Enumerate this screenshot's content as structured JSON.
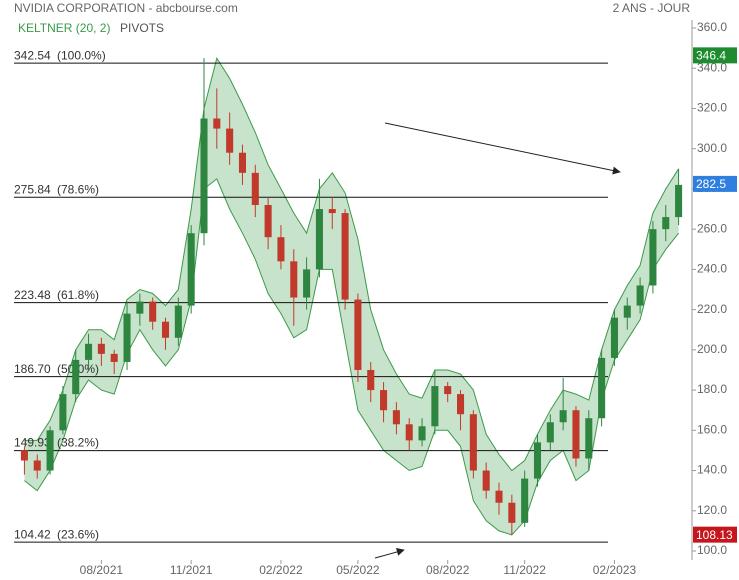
{
  "chart_data": {
    "type": "candlestick",
    "title": "NVIDIA CORPORATION - abcbourse.com",
    "subtitle": "2 ANS - JOUR",
    "legend": [
      "KELTNER (20, 2)",
      "PIVOTS"
    ],
    "categories": [
      null,
      null,
      null,
      null,
      null,
      null,
      "08/2021",
      null,
      null,
      null,
      null,
      null,
      null,
      "11/2021",
      null,
      null,
      null,
      null,
      null,
      null,
      "02/2022",
      null,
      null,
      null,
      null,
      null,
      "05/2022",
      null,
      null,
      null,
      null,
      null,
      null,
      "08/2022",
      null,
      null,
      null,
      null,
      null,
      "11/2022",
      null,
      null,
      null,
      null,
      null,
      null,
      "02/2023",
      null,
      null,
      null,
      null,
      null
    ],
    "candles": {
      "open": [
        150,
        145,
        140,
        160,
        178,
        195,
        203,
        198,
        194,
        218,
        224,
        214,
        206,
        222,
        258,
        315,
        310,
        298,
        288,
        272,
        256,
        244,
        226,
        240,
        270,
        268,
        225,
        190,
        180,
        170,
        163,
        155,
        162,
        182,
        178,
        168,
        140,
        130,
        124,
        114,
        136,
        154,
        164,
        170,
        146,
        166,
        196,
        216,
        222,
        232,
        260,
        266
      ],
      "high": [
        152,
        148,
        162,
        182,
        200,
        208,
        206,
        200,
        224,
        228,
        226,
        216,
        226,
        262,
        345,
        330,
        318,
        302,
        292,
        276,
        262,
        250,
        246,
        285,
        276,
        270,
        228,
        194,
        184,
        174,
        166,
        166,
        190,
        184,
        180,
        170,
        144,
        134,
        128,
        140,
        158,
        168,
        186,
        172,
        170,
        200,
        220,
        226,
        236,
        264,
        272,
        290
      ],
      "low": [
        138,
        136,
        138,
        158,
        174,
        190,
        192,
        188,
        190,
        212,
        210,
        200,
        202,
        218,
        252,
        300,
        292,
        282,
        266,
        250,
        240,
        212,
        220,
        236,
        260,
        220,
        184,
        174,
        164,
        158,
        150,
        152,
        158,
        174,
        160,
        136,
        126,
        118,
        108,
        112,
        132,
        150,
        160,
        142,
        140,
        162,
        192,
        210,
        218,
        228,
        254,
        262
      ],
      "close": [
        145,
        140,
        160,
        178,
        195,
        203,
        198,
        194,
        218,
        224,
        214,
        206,
        222,
        258,
        315,
        310,
        298,
        288,
        272,
        256,
        244,
        226,
        240,
        270,
        268,
        225,
        190,
        180,
        170,
        163,
        155,
        162,
        182,
        178,
        168,
        140,
        130,
        124,
        114,
        136,
        154,
        164,
        170,
        146,
        166,
        196,
        216,
        222,
        232,
        260,
        266,
        282
      ],
      "up_color": "#2e8540",
      "down_color": "#c0392b"
    },
    "keltner": {
      "color": "#3a9a48",
      "upper": [
        155,
        155,
        165,
        180,
        200,
        210,
        210,
        205,
        225,
        230,
        228,
        222,
        230,
        270,
        320,
        345,
        335,
        322,
        308,
        292,
        280,
        268,
        258,
        280,
        288,
        278,
        255,
        220,
        200,
        188,
        178,
        176,
        190,
        190,
        188,
        180,
        158,
        148,
        140,
        145,
        158,
        170,
        180,
        178,
        175,
        200,
        220,
        232,
        242,
        268,
        280,
        290
      ],
      "lower": [
        135,
        130,
        140,
        155,
        175,
        185,
        180,
        178,
        198,
        210,
        200,
        192,
        200,
        225,
        280,
        285,
        270,
        258,
        245,
        228,
        218,
        206,
        210,
        240,
        240,
        205,
        170,
        160,
        150,
        145,
        140,
        142,
        160,
        160,
        152,
        125,
        115,
        110,
        108,
        115,
        134,
        145,
        150,
        135,
        140,
        175,
        195,
        205,
        215,
        240,
        250,
        258
      ]
    },
    "pivots": [
      {
        "level": 342.54,
        "pct": "(100.0%)"
      },
      {
        "level": 275.84,
        "pct": "(78.6%)"
      },
      {
        "level": 223.48,
        "pct": "(61.8%)"
      },
      {
        "level": {
          "value": 186.7,
          "label": "186.70"
        },
        "pct": "(50.0%)"
      },
      {
        "level": 149.93,
        "pct": "(38.2%)"
      },
      {
        "level": 104.42,
        "pct": "(23.6%)"
      }
    ],
    "tags": [
      {
        "value": 346.4,
        "color": "#1e8c2e"
      },
      {
        "value": 282.5,
        "color": "#2f7fe0"
      },
      {
        "value": 108.13,
        "color": "#c4161c"
      }
    ],
    "ylim": [
      100,
      360
    ],
    "yticks": [
      {
        "value": 100,
        "label": "100.0"
      },
      {
        "value": 120,
        "label": "120.0"
      },
      {
        "value": 140,
        "label": "140.0"
      },
      {
        "value": 160,
        "label": "160.0"
      },
      {
        "value": 180,
        "label": "180.0"
      },
      {
        "value": 200,
        "label": "200.0"
      },
      {
        "value": 220,
        "label": "220.0"
      },
      {
        "value": 240,
        "label": "240.0"
      },
      {
        "value": 260,
        "label": "260.0"
      },
      {
        "value": 280,
        "label": "280.0"
      },
      {
        "value": 300,
        "label": "300.0"
      },
      {
        "value": 320,
        "label": "320.0"
      },
      {
        "value": 340,
        "label": "340.0"
      },
      {
        "value": 360,
        "label": "360.0"
      }
    ]
  }
}
